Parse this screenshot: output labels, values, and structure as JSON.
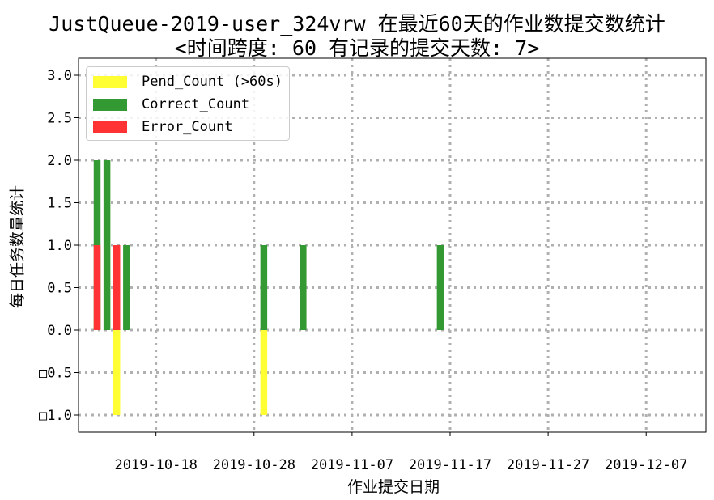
{
  "chart_data": {
    "type": "bar",
    "title_line1": "JustQueue-2019-user_324vrw 在最近60天的作业数提交数统计",
    "title_line2": "<时间跨度: 60  有记录的提交天数: 7>",
    "xlabel": "作业提交日期",
    "ylabel": "每日任务数量统计",
    "x_range": [
      "2019-10-12",
      "2019-12-14"
    ],
    "ylim": [
      -1.2,
      3.2
    ],
    "x_ticks": [
      "2019-10-18",
      "2019-10-28",
      "2019-11-07",
      "2019-11-17",
      "2019-11-27",
      "2019-12-07"
    ],
    "y_ticks": [
      {
        "value": 3.0,
        "label": "3.0"
      },
      {
        "value": 2.5,
        "label": "2.5"
      },
      {
        "value": 2.0,
        "label": "2.0"
      },
      {
        "value": 1.5,
        "label": "1.5"
      },
      {
        "value": 1.0,
        "label": "1.0"
      },
      {
        "value": 0.5,
        "label": "0.5"
      },
      {
        "value": 0.0,
        "label": "0.0"
      },
      {
        "value": -0.5,
        "label": "□0.5"
      },
      {
        "value": -1.0,
        "label": "□1.0"
      }
    ],
    "grid": true,
    "legend_position": "top-left",
    "series": [
      {
        "name": "Pend_Count (>60s)",
        "color": "#ffff33",
        "points": [
          {
            "date": "2019-10-14",
            "value": -1
          },
          {
            "date": "2019-10-29",
            "value": -1
          }
        ]
      },
      {
        "name": "Correct_Count",
        "color": "#339933",
        "points": [
          {
            "date": "2019-10-12",
            "value": 2
          },
          {
            "date": "2019-10-13",
            "value": 2
          },
          {
            "date": "2019-10-15",
            "value": 1
          },
          {
            "date": "2019-10-29",
            "value": 1
          },
          {
            "date": "2019-11-02",
            "value": 1
          },
          {
            "date": "2019-11-16",
            "value": 1
          }
        ]
      },
      {
        "name": "Error_Count",
        "color": "#ff3333",
        "points": [
          {
            "date": "2019-10-12",
            "value": 1
          },
          {
            "date": "2019-10-14",
            "value": 1
          }
        ]
      }
    ]
  }
}
